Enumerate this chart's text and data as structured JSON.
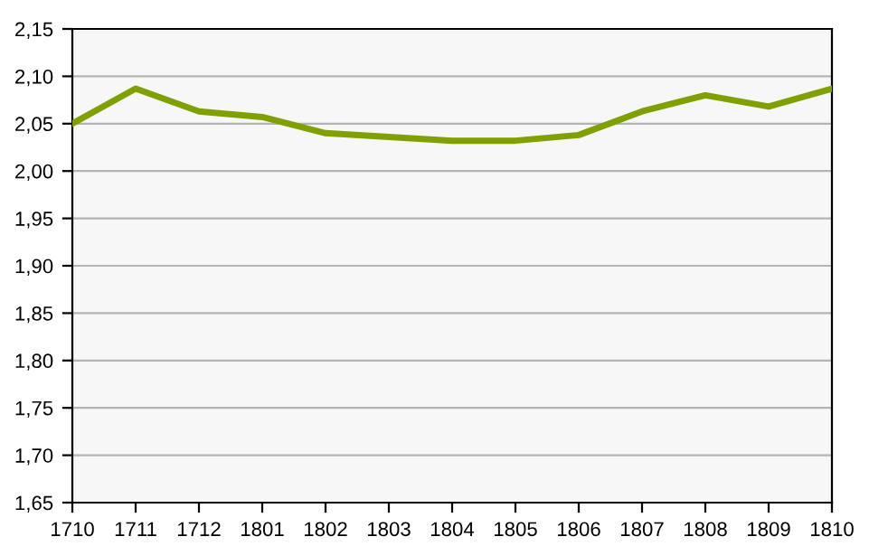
{
  "chart_data": {
    "type": "line",
    "categories": [
      "1710",
      "1711",
      "1712",
      "1801",
      "1802",
      "1803",
      "1804",
      "1805",
      "1806",
      "1807",
      "1808",
      "1809",
      "1810"
    ],
    "series": [
      {
        "color": "#80a000",
        "values": [
          2.05,
          2.087,
          2.063,
          2.057,
          2.04,
          2.036,
          2.032,
          2.032,
          2.038,
          2.063,
          2.08,
          2.068,
          2.087
        ]
      }
    ],
    "ylim": [
      1.65,
      2.15
    ],
    "yticks": [
      {
        "value": 1.65,
        "label": "1,65"
      },
      {
        "value": 1.7,
        "label": "1,70"
      },
      {
        "value": 1.75,
        "label": "1,75"
      },
      {
        "value": 1.8,
        "label": "1,80"
      },
      {
        "value": 1.85,
        "label": "1,85"
      },
      {
        "value": 1.9,
        "label": "1,90"
      },
      {
        "value": 1.95,
        "label": "1,95"
      },
      {
        "value": 2.0,
        "label": "2,00"
      },
      {
        "value": 2.05,
        "label": "2,05"
      },
      {
        "value": 2.1,
        "label": "2,10"
      },
      {
        "value": 2.15,
        "label": "2,15"
      }
    ],
    "grid": "y",
    "marker": "none",
    "line_style": "solid"
  }
}
